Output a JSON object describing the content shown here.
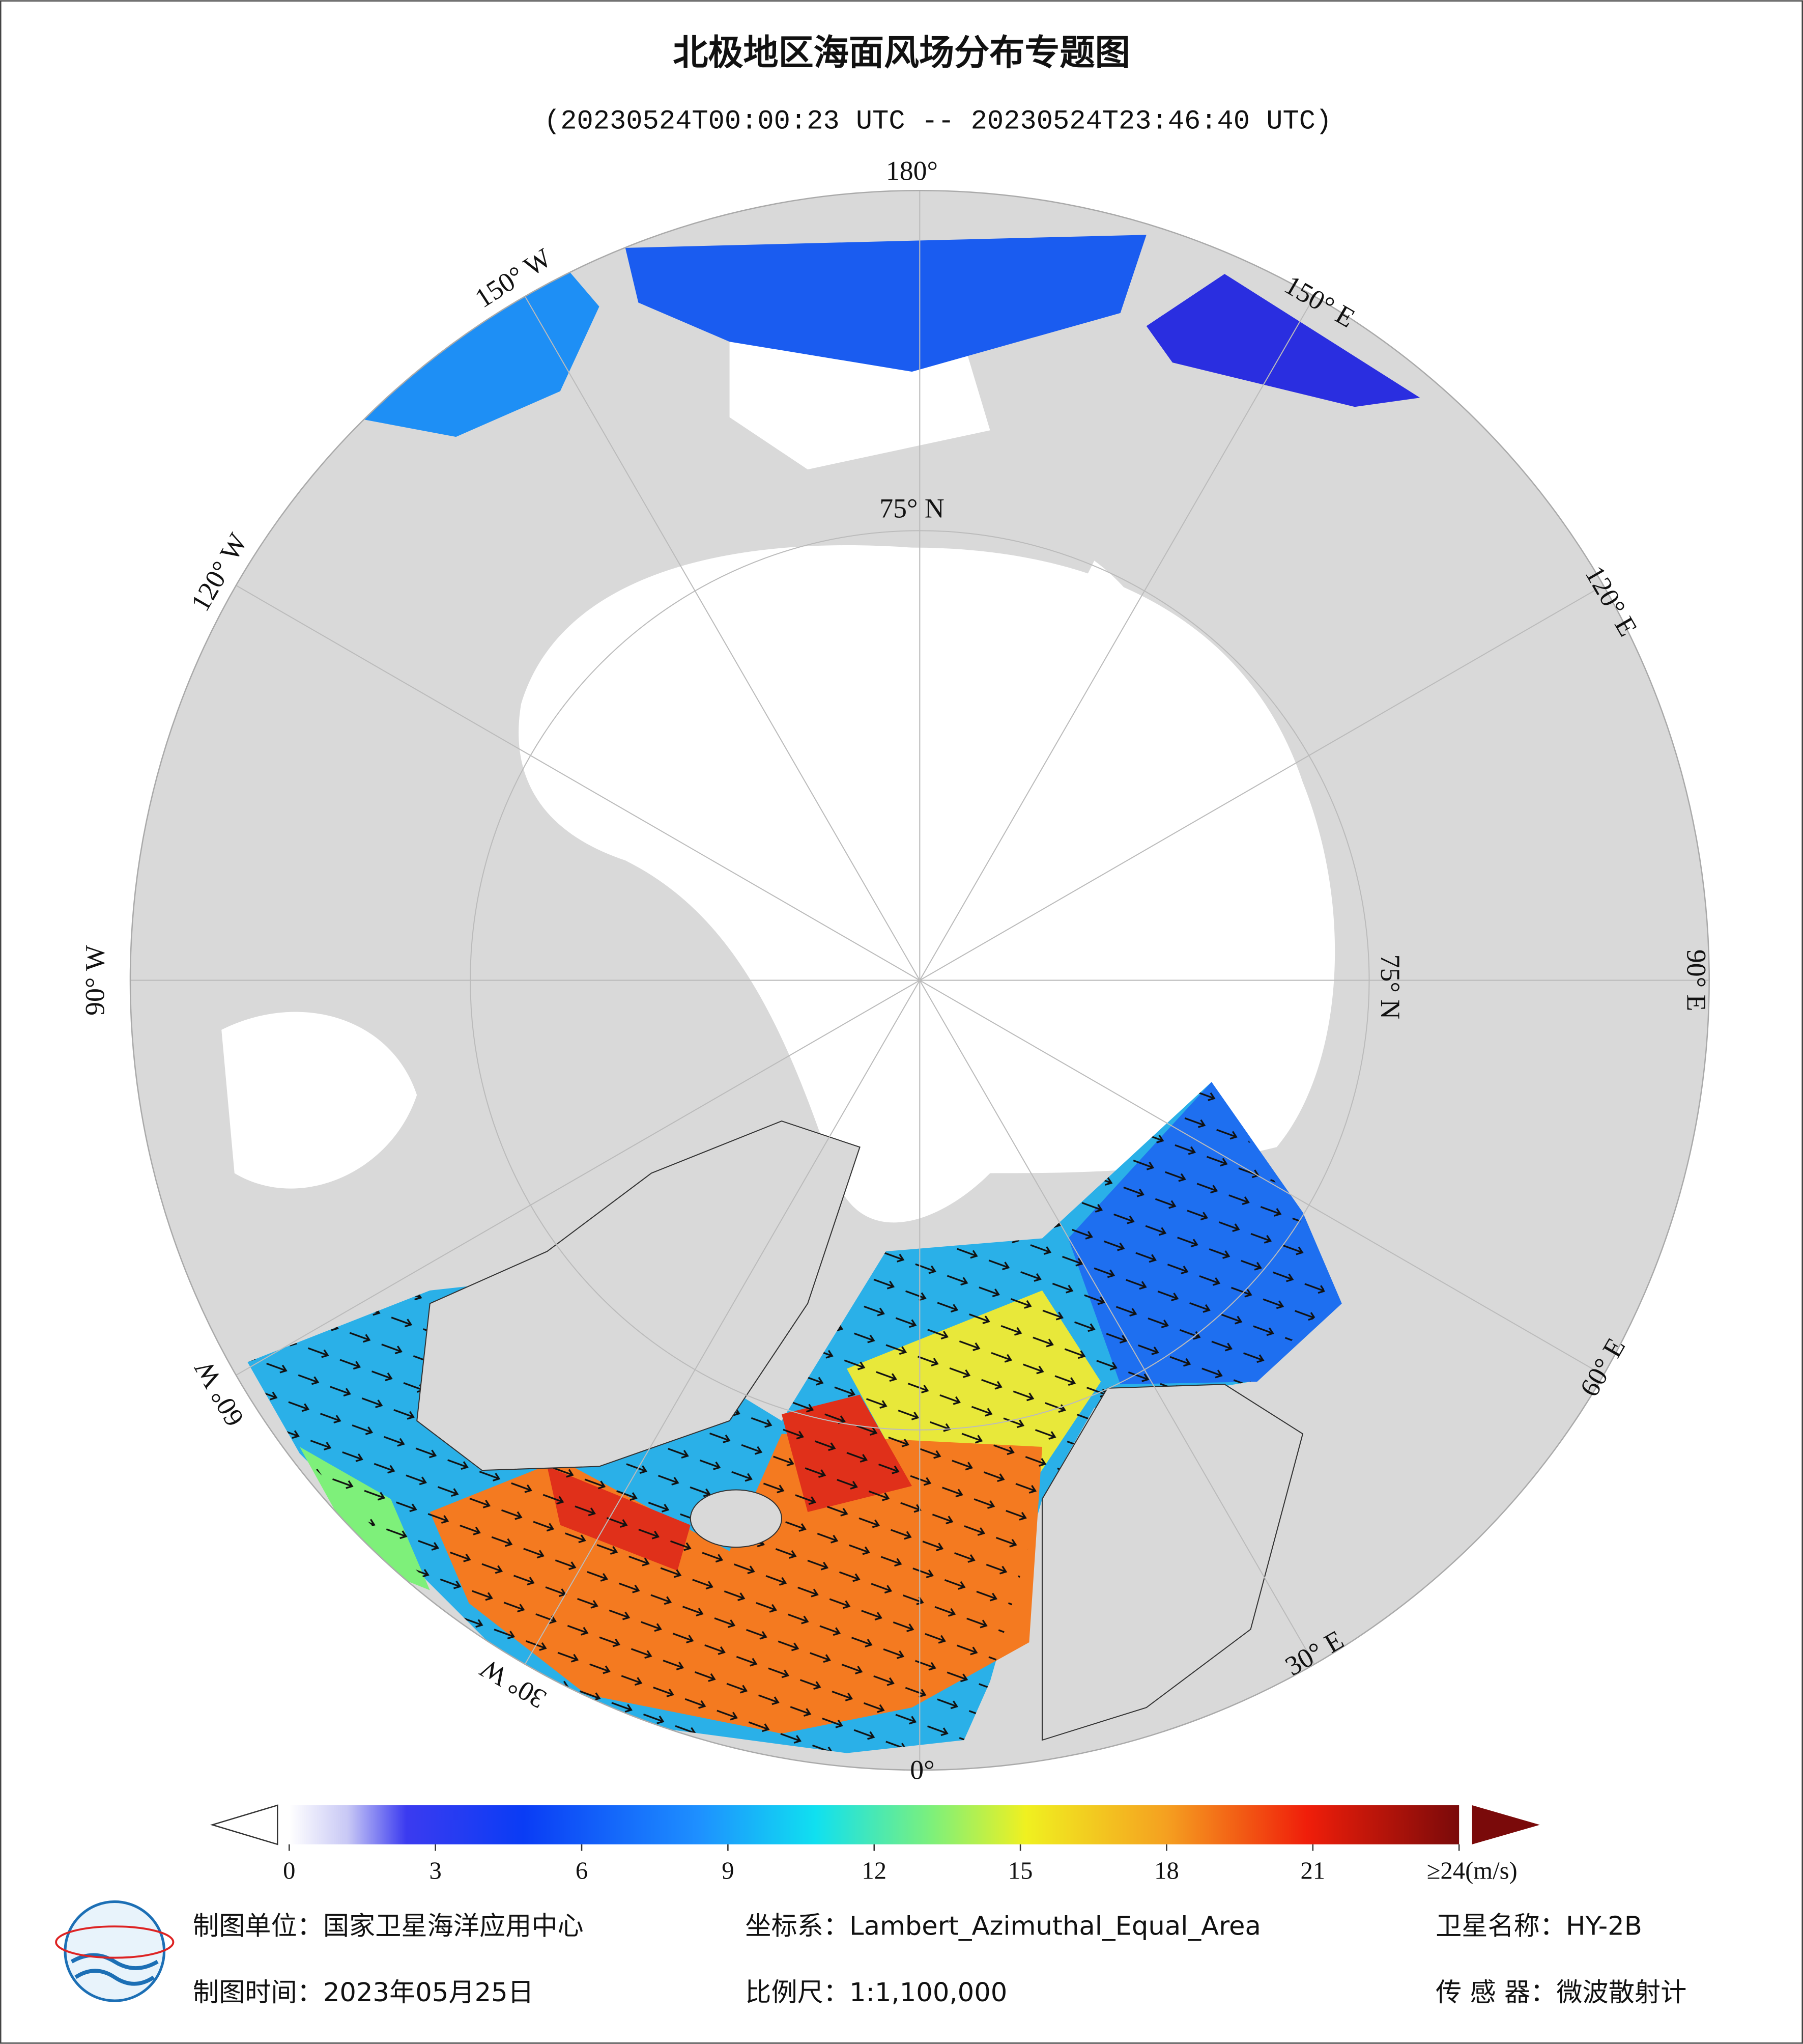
{
  "title": "北极地区海面风场分布专题图",
  "subtitle": "(20230524T00:00:23 UTC -- 20230524T23:46:40 UTC)",
  "graticule_labels": [
    "180°",
    "150° W",
    "120° W",
    "90° W",
    "60° W",
    "30° W",
    "0°",
    "30° E",
    "60° E",
    "90° E",
    "120° E",
    "150° E",
    "75° N",
    "75° N"
  ],
  "colorbar": {
    "ticks": [
      0,
      3,
      6,
      9,
      12,
      15,
      18,
      21,
      {
        "value": 24,
        "label": "≥24(m/s)"
      }
    ]
  },
  "footer": {
    "unit": "制图单位：国家卫星海洋应用中心",
    "crs": "坐标系：Lambert_Azimuthal_Equal_Area",
    "satellite": "卫星名称：HY-2B",
    "date": "制图时间：2023年05月25日",
    "scale": "比例尺：1:1,100,000",
    "sensor": "传 感 器：微波散射计"
  }
}
